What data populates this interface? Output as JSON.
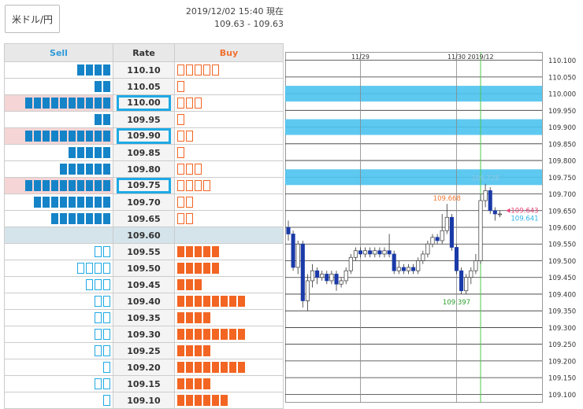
{
  "header": {
    "pair_label": "米ドル/円",
    "datetime": "2019/12/02 15:40 現在",
    "range": "109.63 - 109.63"
  },
  "colors": {
    "sell_fill": "#1583c7",
    "sell_outline": "#1fa9e4",
    "buy_fill": "#f26522",
    "buy_outline": "#f26522",
    "current_row": "#d4e4ea",
    "band": "#4cc3ee"
  },
  "order_book": {
    "headers": {
      "sell": "Sell",
      "rate": "Rate",
      "buy": "Buy"
    },
    "rows": [
      {
        "rate": "110.10",
        "sell_filled": 4,
        "sell_outline": 0,
        "buy_filled": 0,
        "buy_outline": 5,
        "highlight": false,
        "current": false
      },
      {
        "rate": "110.05",
        "sell_filled": 2,
        "sell_outline": 0,
        "buy_filled": 0,
        "buy_outline": 1,
        "highlight": false,
        "current": false
      },
      {
        "rate": "110.00",
        "sell_filled": 10,
        "sell_outline": 0,
        "buy_filled": 0,
        "buy_outline": 3,
        "highlight": true,
        "current": false
      },
      {
        "rate": "109.95",
        "sell_filled": 2,
        "sell_outline": 0,
        "buy_filled": 0,
        "buy_outline": 1,
        "highlight": false,
        "current": false
      },
      {
        "rate": "109.90",
        "sell_filled": 10,
        "sell_outline": 0,
        "buy_filled": 0,
        "buy_outline": 2,
        "highlight": true,
        "current": false
      },
      {
        "rate": "109.85",
        "sell_filled": 5,
        "sell_outline": 0,
        "buy_filled": 0,
        "buy_outline": 1,
        "highlight": false,
        "current": false
      },
      {
        "rate": "109.80",
        "sell_filled": 6,
        "sell_outline": 0,
        "buy_filled": 0,
        "buy_outline": 3,
        "highlight": false,
        "current": false
      },
      {
        "rate": "109.75",
        "sell_filled": 10,
        "sell_outline": 0,
        "buy_filled": 0,
        "buy_outline": 4,
        "highlight": true,
        "current": false
      },
      {
        "rate": "109.70",
        "sell_filled": 9,
        "sell_outline": 0,
        "buy_filled": 0,
        "buy_outline": 2,
        "highlight": false,
        "current": false
      },
      {
        "rate": "109.65",
        "sell_filled": 7,
        "sell_outline": 0,
        "buy_filled": 0,
        "buy_outline": 2,
        "highlight": false,
        "current": false
      },
      {
        "rate": "109.60",
        "sell_filled": 0,
        "sell_outline": 0,
        "buy_filled": 0,
        "buy_outline": 0,
        "highlight": false,
        "current": true
      },
      {
        "rate": "109.55",
        "sell_filled": 0,
        "sell_outline": 2,
        "buy_filled": 5,
        "buy_outline": 0,
        "highlight": false,
        "current": false
      },
      {
        "rate": "109.50",
        "sell_filled": 0,
        "sell_outline": 4,
        "buy_filled": 5,
        "buy_outline": 0,
        "highlight": false,
        "current": false
      },
      {
        "rate": "109.45",
        "sell_filled": 0,
        "sell_outline": 3,
        "buy_filled": 3,
        "buy_outline": 0,
        "highlight": false,
        "current": false
      },
      {
        "rate": "109.40",
        "sell_filled": 0,
        "sell_outline": 2,
        "buy_filled": 8,
        "buy_outline": 0,
        "highlight": false,
        "current": false
      },
      {
        "rate": "109.35",
        "sell_filled": 0,
        "sell_outline": 2,
        "buy_filled": 4,
        "buy_outline": 0,
        "highlight": false,
        "current": false
      },
      {
        "rate": "109.30",
        "sell_filled": 0,
        "sell_outline": 2,
        "buy_filled": 8,
        "buy_outline": 0,
        "highlight": false,
        "current": false
      },
      {
        "rate": "109.25",
        "sell_filled": 0,
        "sell_outline": 2,
        "buy_filled": 4,
        "buy_outline": 0,
        "highlight": false,
        "current": false
      },
      {
        "rate": "109.20",
        "sell_filled": 0,
        "sell_outline": 1,
        "buy_filled": 8,
        "buy_outline": 0,
        "highlight": false,
        "current": false
      },
      {
        "rate": "109.15",
        "sell_filled": 0,
        "sell_outline": 2,
        "buy_filled": 4,
        "buy_outline": 0,
        "highlight": false,
        "current": false
      },
      {
        "rate": "109.10",
        "sell_filled": 0,
        "sell_outline": 1,
        "buy_filled": 6,
        "buy_outline": 0,
        "highlight": false,
        "current": false
      }
    ]
  },
  "chart_data": {
    "type": "candlestick",
    "date_labels": [
      {
        "label": "11/29",
        "index": 15
      },
      {
        "label": "11/30",
        "index": 35
      },
      {
        "label": "2019/12",
        "index": 40
      }
    ],
    "day_start_marker_index": 40,
    "y_ticks": [
      "110.100",
      "110.050",
      "110.000",
      "109.950",
      "109.900",
      "109.850",
      "109.800",
      "109.750",
      "109.700",
      "109.650",
      "109.600",
      "109.550",
      "109.500",
      "109.450",
      "109.400",
      "109.350",
      "109.300",
      "109.250",
      "109.200",
      "109.150",
      "109.100"
    ],
    "ylim": [
      109.075,
      110.125
    ],
    "bands": [
      110.0,
      109.9,
      109.75
    ],
    "annotations": [
      {
        "text": "109.728",
        "value": 109.728,
        "index": 41,
        "color": "#8cc8e6"
      },
      {
        "text": "109.668",
        "value": 109.668,
        "index": 33,
        "color": "#f07830"
      },
      {
        "text": "109.397",
        "value": 109.397,
        "index": 35,
        "color": "#2ca02c"
      }
    ],
    "price_tags": [
      {
        "text": "109.643",
        "value": 109.643,
        "color": "#e8457a"
      },
      {
        "text": "109.641",
        "value": 109.641,
        "color": "#2fb4e8"
      }
    ],
    "candles": [
      [
        109.6,
        109.58,
        109.62,
        109.56
      ],
      [
        109.58,
        109.48,
        109.59,
        109.47
      ],
      [
        109.48,
        109.55,
        109.56,
        109.46
      ],
      [
        109.55,
        109.38,
        109.56,
        109.36
      ],
      [
        109.38,
        109.44,
        109.46,
        109.35
      ],
      [
        109.44,
        109.47,
        109.49,
        109.42
      ],
      [
        109.47,
        109.45,
        109.48,
        109.43
      ],
      [
        109.45,
        109.46,
        109.47,
        109.44
      ],
      [
        109.46,
        109.44,
        109.47,
        109.43
      ],
      [
        109.44,
        109.46,
        109.47,
        109.43
      ],
      [
        109.46,
        109.43,
        109.47,
        109.41
      ],
      [
        109.43,
        109.44,
        109.45,
        109.42
      ],
      [
        109.44,
        109.47,
        109.48,
        109.43
      ],
      [
        109.47,
        109.51,
        109.52,
        109.46
      ],
      [
        109.51,
        109.53,
        109.54,
        109.5
      ],
      [
        109.53,
        109.52,
        109.54,
        109.51
      ],
      [
        109.52,
        109.53,
        109.54,
        109.51
      ],
      [
        109.53,
        109.52,
        109.54,
        109.51
      ],
      [
        109.52,
        109.53,
        109.54,
        109.51
      ],
      [
        109.53,
        109.52,
        109.54,
        109.51
      ],
      [
        109.52,
        109.53,
        109.54,
        109.51
      ],
      [
        109.53,
        109.52,
        109.58,
        109.51
      ],
      [
        109.52,
        109.47,
        109.53,
        109.46
      ],
      [
        109.47,
        109.48,
        109.5,
        109.46
      ],
      [
        109.48,
        109.47,
        109.49,
        109.46
      ],
      [
        109.47,
        109.48,
        109.49,
        109.46
      ],
      [
        109.48,
        109.47,
        109.49,
        109.46
      ],
      [
        109.47,
        109.5,
        109.51,
        109.46
      ],
      [
        109.5,
        109.52,
        109.53,
        109.49
      ],
      [
        109.52,
        109.55,
        109.56,
        109.51
      ],
      [
        109.55,
        109.57,
        109.58,
        109.54
      ],
      [
        109.57,
        109.56,
        109.58,
        109.55
      ],
      [
        109.56,
        109.59,
        109.64,
        109.55
      ],
      [
        109.59,
        109.63,
        109.67,
        109.58
      ],
      [
        109.63,
        109.54,
        109.64,
        109.53
      ],
      [
        109.54,
        109.47,
        109.55,
        109.46
      ],
      [
        109.47,
        109.41,
        109.48,
        109.4
      ],
      [
        109.41,
        109.45,
        109.46,
        109.4
      ],
      [
        109.45,
        109.47,
        109.48,
        109.43
      ],
      [
        109.47,
        109.5,
        109.52,
        109.46
      ],
      [
        109.5,
        109.68,
        109.7,
        109.49
      ],
      [
        109.68,
        109.71,
        109.73,
        109.66
      ],
      [
        109.71,
        109.65,
        109.72,
        109.64
      ],
      [
        109.65,
        109.64,
        109.66,
        109.62
      ],
      [
        109.64,
        109.64,
        109.65,
        109.63
      ]
    ]
  }
}
